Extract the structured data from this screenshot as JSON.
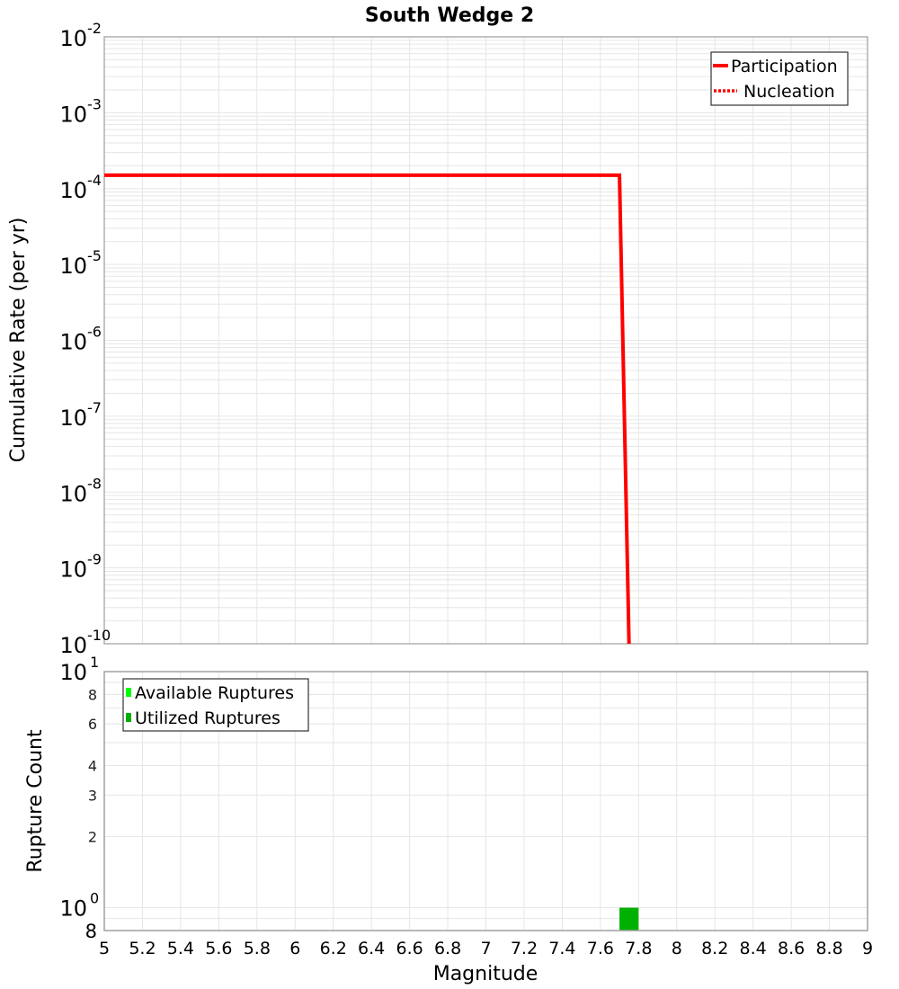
{
  "chart_data": [
    {
      "type": "line",
      "title": "South Wedge 2",
      "xlabel": "Magnitude",
      "ylabel": "Cumulative Rate (per yr)",
      "xlim": [
        5,
        9
      ],
      "ylim": [
        1e-10,
        0.01
      ],
      "yscale": "log",
      "grid": true,
      "legend_position": "top-right",
      "y_tick_labels": [
        {
          "base": "10",
          "exp": "-2"
        },
        {
          "base": "10",
          "exp": "-3"
        },
        {
          "base": "10",
          "exp": "-4"
        },
        {
          "base": "10",
          "exp": "-5"
        },
        {
          "base": "10",
          "exp": "-6"
        },
        {
          "base": "10",
          "exp": "-7"
        },
        {
          "base": "10",
          "exp": "-8"
        },
        {
          "base": "10",
          "exp": "-9"
        },
        {
          "base": "10",
          "exp": "-10"
        }
      ],
      "series": [
        {
          "name": "Participation",
          "style": "solid",
          "color": "#ff0000",
          "x": [
            5.0,
            7.7,
            7.75
          ],
          "y": [
            0.00015,
            0.00015,
            1e-10
          ]
        },
        {
          "name": "Nucleation",
          "style": "dotted",
          "color": "#ff0000",
          "x": [
            5.0,
            7.7,
            7.75
          ],
          "y": [
            0.00015,
            0.00015,
            1e-10
          ]
        }
      ]
    },
    {
      "type": "bar",
      "xlabel": "Magnitude",
      "ylabel": "Rupture Count",
      "xlim": [
        5,
        9
      ],
      "ylim": [
        0.8,
        10
      ],
      "yscale": "log",
      "grid": true,
      "legend_position": "top-left",
      "x_tick_labels": [
        "5",
        "5.2",
        "5.4",
        "5.6",
        "5.8",
        "6",
        "6.2",
        "6.4",
        "6.6",
        "6.8",
        "7",
        "7.2",
        "7.4",
        "7.6",
        "7.8",
        "8",
        "8.2",
        "8.4",
        "8.6",
        "8.8",
        "9"
      ],
      "y_tick_labels": [
        {
          "label": "10",
          "exp": "1",
          "value": 10
        },
        {
          "label": "8",
          "value": 8
        },
        {
          "label": "6",
          "value": 6
        },
        {
          "label": "4",
          "value": 4
        },
        {
          "label": "3",
          "value": 3
        },
        {
          "label": "2",
          "value": 2
        },
        {
          "label": "10",
          "exp": "0",
          "value": 1
        },
        {
          "label": "8",
          "value": 0.8
        }
      ],
      "series": [
        {
          "name": "Available Ruptures",
          "color": "#00ff00",
          "bins": []
        },
        {
          "name": "Utilized Ruptures",
          "color": "#00b000",
          "bins": [
            {
              "x0": 7.7,
              "x1": 7.8,
              "count": 1
            }
          ]
        }
      ]
    }
  ],
  "figure": {
    "title": "South Wedge 2",
    "xlabel": "Magnitude",
    "top": {
      "ylabel": "Cumulative Rate (per yr)",
      "legend": [
        "Participation",
        "Nucleation"
      ]
    },
    "bottom": {
      "ylabel": "Rupture Count",
      "legend": [
        "Available Ruptures",
        "Utilized Ruptures"
      ]
    }
  }
}
